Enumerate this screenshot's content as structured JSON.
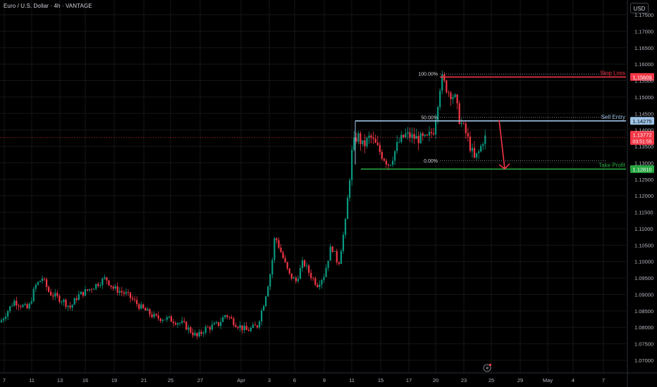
{
  "title": "Euro / U.S. Dollar · 4h · VANTAGE",
  "currency_button": "USD",
  "colors": {
    "background": "#000000",
    "bull": "#089981",
    "bear": "#f23645",
    "grid": "#161616",
    "axis_text": "#d1d4dc",
    "stop": "#f23645",
    "entry": "#9ec3e6",
    "take_profit": "#26a641"
  },
  "chart_data": {
    "type": "candlestick",
    "y_axis": {
      "ticks": [
        "1.17500",
        "1.17000",
        "1.16500",
        "1.16000",
        "1.15500",
        "1.15000",
        "1.14500",
        "1.14000",
        "1.13500",
        "1.13000",
        "1.12500",
        "1.12000",
        "1.11500",
        "1.11000",
        "1.10500",
        "1.10000",
        "1.09500",
        "1.09000",
        "1.08500",
        "1.08000",
        "1.07500",
        "1.07000"
      ],
      "range": [
        1.069,
        1.178
      ]
    },
    "x_axis": {
      "ticks": [
        "7",
        "11",
        "13",
        "16",
        "19",
        "21",
        "25",
        "27",
        "Apr",
        "3",
        "6",
        "9",
        "11",
        "15",
        "17",
        "20",
        "23",
        "25",
        "29",
        "May",
        "4",
        "7"
      ]
    },
    "anchors": [
      [
        0,
        1.0815
      ],
      [
        20,
        1.088
      ],
      [
        40,
        1.0855
      ],
      [
        50,
        1.0925
      ],
      [
        60,
        1.095
      ],
      [
        70,
        1.0905
      ],
      [
        90,
        1.088
      ],
      [
        100,
        1.086
      ],
      [
        110,
        1.0895
      ],
      [
        130,
        1.092
      ],
      [
        150,
        1.095
      ],
      [
        160,
        1.092
      ],
      [
        180,
        1.09
      ],
      [
        200,
        1.086
      ],
      [
        220,
        1.083
      ],
      [
        240,
        1.0825
      ],
      [
        260,
        1.081
      ],
      [
        280,
        1.077
      ],
      [
        290,
        1.0795
      ],
      [
        310,
        1.081
      ],
      [
        320,
        1.084
      ],
      [
        335,
        1.081
      ],
      [
        350,
        1.079
      ],
      [
        365,
        1.0805
      ],
      [
        375,
        1.088
      ],
      [
        385,
        1.098
      ],
      [
        390,
        1.108
      ],
      [
        400,
        1.102
      ],
      [
        410,
        1.096
      ],
      [
        420,
        1.094
      ],
      [
        430,
        1.1
      ],
      [
        440,
        1.096
      ],
      [
        450,
        1.093
      ],
      [
        460,
        1.096
      ],
      [
        470,
        1.105
      ],
      [
        480,
        1.099
      ],
      [
        490,
        1.112
      ],
      [
        500,
        1.135
      ],
      [
        507,
        1.1385
      ],
      [
        515,
        1.135
      ],
      [
        525,
        1.138
      ],
      [
        540,
        1.133
      ],
      [
        552,
        1.1295
      ],
      [
        565,
        1.136
      ],
      [
        575,
        1.1385
      ],
      [
        590,
        1.1375
      ],
      [
        605,
        1.137
      ],
      [
        615,
        1.14
      ],
      [
        620,
        1.147
      ],
      [
        626,
        1.156
      ],
      [
        635,
        1.152
      ],
      [
        645,
        1.15
      ],
      [
        652,
        1.143
      ],
      [
        660,
        1.1395
      ],
      [
        667,
        1.135
      ],
      [
        673,
        1.131
      ],
      [
        680,
        1.1335
      ],
      [
        686,
        1.1375
      ],
      [
        690,
        1.1377
      ]
    ],
    "last_price": {
      "value": 1.13772,
      "label": "1.13772",
      "countdown": "03:51:55"
    },
    "fib_levels": [
      {
        "label": "100.00%",
        "value": 1.157
      },
      {
        "label": "50.00%",
        "value": 1.1438
      },
      {
        "label": "0.00%",
        "value": 1.1306
      }
    ],
    "levels": [
      {
        "name": "Stop Loss",
        "value": 1.15609,
        "label": "1.15609",
        "color": "#f23645"
      },
      {
        "name": "Sell Entry",
        "value": 1.14275,
        "label": "1.14275",
        "color": "#9ec3e6"
      },
      {
        "name": "Take Profit",
        "value": 1.1281,
        "label": "1.12810",
        "color": "#26a641"
      }
    ],
    "arrow": {
      "from": [
        708,
        1.143
      ],
      "to": [
        716,
        1.1282
      ]
    }
  }
}
